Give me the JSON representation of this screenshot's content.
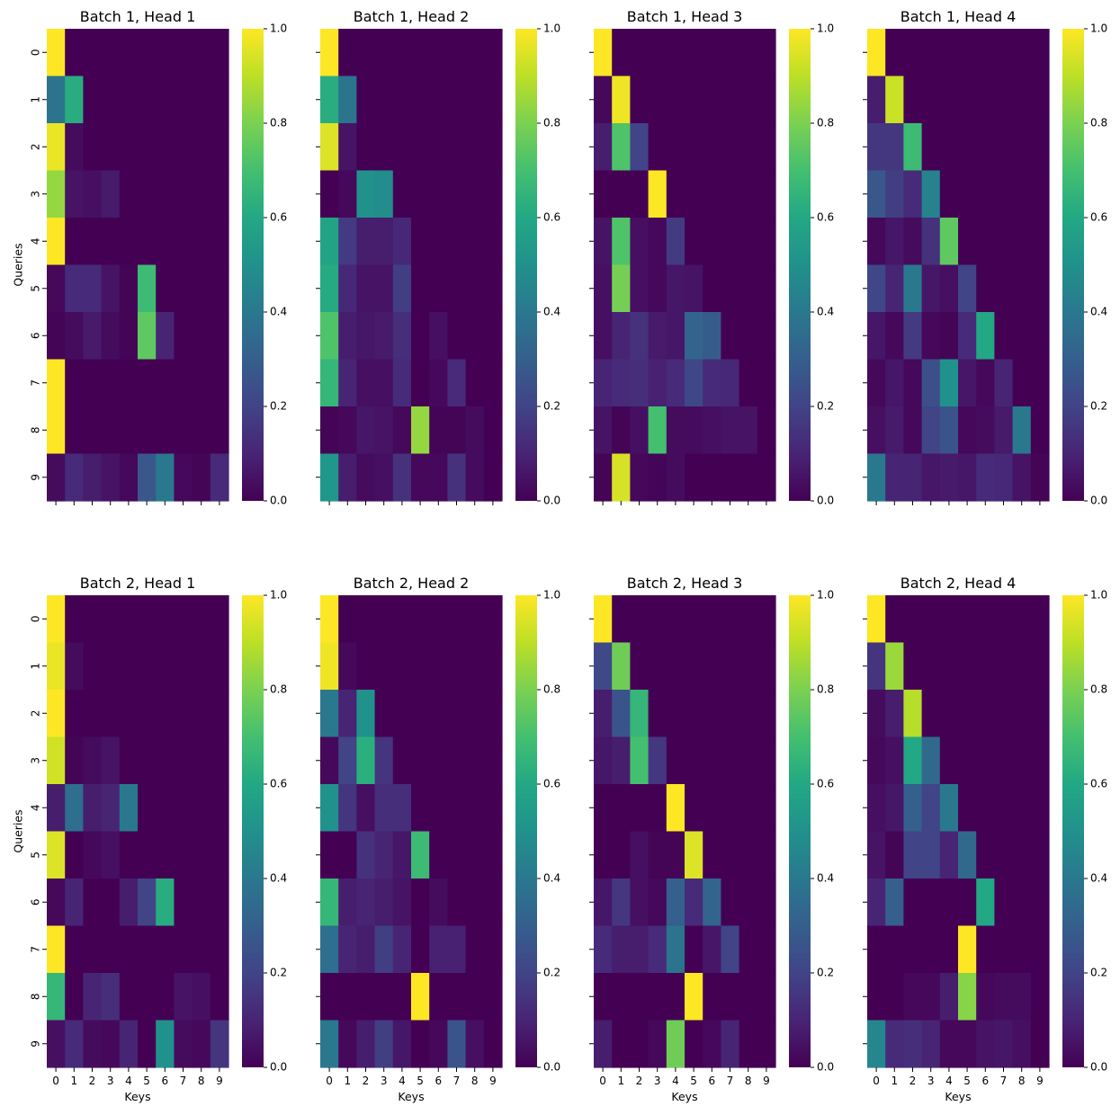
{
  "chart_data": {
    "type": "heatmap",
    "colormap": "viridis",
    "colorbar": {
      "min": 0.0,
      "max": 1.0,
      "ticks": [
        "0.0",
        "0.2",
        "0.4",
        "0.6",
        "0.8",
        "1.0"
      ]
    },
    "x_ticks": [
      "0",
      "1",
      "2",
      "3",
      "4",
      "5",
      "6",
      "7",
      "8",
      "9"
    ],
    "y_ticks": [
      "0",
      "1",
      "2",
      "3",
      "4",
      "5",
      "6",
      "7",
      "8",
      "9"
    ],
    "xlabel": "Keys",
    "ylabel": "Queries",
    "panels": [
      {
        "title": "Batch 1, Head 1",
        "matrix": [
          [
            1.0,
            0,
            0,
            0,
            0,
            0,
            0,
            0,
            0,
            0
          ],
          [
            0.38,
            0.62,
            0,
            0,
            0,
            0,
            0,
            0,
            0,
            0
          ],
          [
            0.97,
            0.03,
            0,
            0,
            0,
            0,
            0,
            0,
            0,
            0
          ],
          [
            0.84,
            0.05,
            0.04,
            0.07,
            0,
            0,
            0,
            0,
            0,
            0
          ],
          [
            1.0,
            0,
            0,
            0,
            0,
            0,
            0,
            0,
            0,
            0
          ],
          [
            0.02,
            0.12,
            0.12,
            0.05,
            0.01,
            0.68,
            0,
            0,
            0,
            0
          ],
          [
            0.01,
            0.03,
            0.07,
            0.03,
            0.01,
            0.75,
            0.1,
            0,
            0,
            0
          ],
          [
            1.0,
            0,
            0,
            0,
            0,
            0,
            0,
            0,
            0,
            0
          ],
          [
            1.0,
            0,
            0,
            0,
            0,
            0,
            0,
            0,
            0,
            0
          ],
          [
            0.03,
            0.12,
            0.08,
            0.05,
            0.02,
            0.27,
            0.4,
            0.02,
            0.01,
            0.12
          ]
        ]
      },
      {
        "title": "Batch 1, Head 2",
        "matrix": [
          [
            1.0,
            0,
            0,
            0,
            0,
            0,
            0,
            0,
            0,
            0
          ],
          [
            0.62,
            0.38,
            0,
            0,
            0,
            0,
            0,
            0,
            0,
            0
          ],
          [
            0.95,
            0.05,
            0,
            0,
            0,
            0,
            0,
            0,
            0,
            0
          ],
          [
            0.0,
            0.02,
            0.5,
            0.48,
            0,
            0,
            0,
            0,
            0,
            0
          ],
          [
            0.58,
            0.17,
            0.08,
            0.08,
            0.11,
            0,
            0,
            0,
            0,
            0
          ],
          [
            0.61,
            0.11,
            0.05,
            0.05,
            0.18,
            0.0,
            0,
            0,
            0,
            0
          ],
          [
            0.72,
            0.08,
            0.06,
            0.07,
            0.13,
            0.0,
            0.04,
            0,
            0,
            0
          ],
          [
            0.66,
            0.1,
            0.04,
            0.04,
            0.12,
            0.0,
            0.02,
            0.12,
            0,
            0
          ],
          [
            0.01,
            0.02,
            0.06,
            0.05,
            0.02,
            0.84,
            0.01,
            0.01,
            0.03,
            0
          ],
          [
            0.52,
            0.08,
            0.03,
            0.04,
            0.14,
            0.02,
            0.02,
            0.14,
            0.03,
            0.0
          ]
        ]
      },
      {
        "title": "Batch 1, Head 3",
        "matrix": [
          [
            1.0,
            0,
            0,
            0,
            0,
            0,
            0,
            0,
            0,
            0
          ],
          [
            0.02,
            0.98,
            0,
            0,
            0,
            0,
            0,
            0,
            0,
            0
          ],
          [
            0.08,
            0.72,
            0.2,
            0,
            0,
            0,
            0,
            0,
            0,
            0
          ],
          [
            0.0,
            0.0,
            0.0,
            1.0,
            0,
            0,
            0,
            0,
            0,
            0
          ],
          [
            0.05,
            0.72,
            0.04,
            0.02,
            0.17,
            0,
            0,
            0,
            0,
            0
          ],
          [
            0.04,
            0.79,
            0.04,
            0.02,
            0.06,
            0.05,
            0,
            0,
            0,
            0
          ],
          [
            0.04,
            0.1,
            0.14,
            0.07,
            0.06,
            0.32,
            0.29,
            0,
            0,
            0
          ],
          [
            0.1,
            0.12,
            0.13,
            0.09,
            0.12,
            0.21,
            0.12,
            0.11,
            0,
            0
          ],
          [
            0.05,
            0.01,
            0.04,
            0.7,
            0.03,
            0.03,
            0.04,
            0.05,
            0.05,
            0
          ],
          [
            0.01,
            0.94,
            0.02,
            0.01,
            0.03,
            0.0,
            0.0,
            0.0,
            0.0,
            0.0
          ]
        ]
      },
      {
        "title": "Batch 1, Head 4",
        "matrix": [
          [
            1.0,
            0,
            0,
            0,
            0,
            0,
            0,
            0,
            0,
            0
          ],
          [
            0.08,
            0.92,
            0,
            0,
            0,
            0,
            0,
            0,
            0,
            0
          ],
          [
            0.16,
            0.16,
            0.68,
            0,
            0,
            0,
            0,
            0,
            0,
            0
          ],
          [
            0.27,
            0.18,
            0.12,
            0.44,
            0,
            0,
            0,
            0,
            0,
            0
          ],
          [
            0.02,
            0.06,
            0.03,
            0.14,
            0.75,
            0,
            0,
            0,
            0,
            0
          ],
          [
            0.21,
            0.1,
            0.4,
            0.06,
            0.04,
            0.2,
            0,
            0,
            0,
            0
          ],
          [
            0.06,
            0.02,
            0.17,
            0.02,
            0.01,
            0.12,
            0.6,
            0,
            0,
            0
          ],
          [
            0.02,
            0.06,
            0.02,
            0.24,
            0.5,
            0.06,
            0.02,
            0.1,
            0,
            0
          ],
          [
            0.04,
            0.07,
            0.02,
            0.2,
            0.26,
            0.02,
            0.03,
            0.07,
            0.4,
            0
          ],
          [
            0.4,
            0.1,
            0.1,
            0.06,
            0.07,
            0.06,
            0.12,
            0.11,
            0.05,
            0.01
          ]
        ]
      },
      {
        "title": "Batch 2, Head 1",
        "matrix": [
          [
            1.0,
            0,
            0,
            0,
            0,
            0,
            0,
            0,
            0,
            0
          ],
          [
            0.97,
            0.03,
            0,
            0,
            0,
            0,
            0,
            0,
            0,
            0
          ],
          [
            1.0,
            0,
            0,
            0,
            0,
            0,
            0,
            0,
            0,
            0
          ],
          [
            0.93,
            0.01,
            0.03,
            0.05,
            0,
            0,
            0,
            0,
            0,
            0
          ],
          [
            0.08,
            0.36,
            0.08,
            0.1,
            0.4,
            0,
            0,
            0,
            0,
            0
          ],
          [
            0.95,
            0.0,
            0.02,
            0.04,
            0.0,
            0.0,
            0,
            0,
            0,
            0
          ],
          [
            0.02,
            0.1,
            0.0,
            0.0,
            0.08,
            0.2,
            0.62,
            0,
            0,
            0
          ],
          [
            1.0,
            0,
            0,
            0,
            0,
            0,
            0,
            0,
            0,
            0
          ],
          [
            0.66,
            0.0,
            0.1,
            0.13,
            0.0,
            0.0,
            0.0,
            0.05,
            0.04,
            0
          ],
          [
            0.04,
            0.12,
            0.03,
            0.02,
            0.1,
            0.0,
            0.5,
            0.03,
            0.02,
            0.15
          ]
        ]
      },
      {
        "title": "Batch 2, Head 2",
        "matrix": [
          [
            1.0,
            0,
            0,
            0,
            0,
            0,
            0,
            0,
            0,
            0
          ],
          [
            0.98,
            0.02,
            0,
            0,
            0,
            0,
            0,
            0,
            0,
            0
          ],
          [
            0.4,
            0.1,
            0.5,
            0,
            0,
            0,
            0,
            0,
            0,
            0
          ],
          [
            0.02,
            0.2,
            0.63,
            0.15,
            0,
            0,
            0,
            0,
            0,
            0
          ],
          [
            0.5,
            0.15,
            0.04,
            0.13,
            0.13,
            0,
            0,
            0,
            0,
            0
          ],
          [
            0.0,
            0.0,
            0.14,
            0.1,
            0.06,
            0.68,
            0,
            0,
            0,
            0
          ],
          [
            0.66,
            0.08,
            0.1,
            0.08,
            0.05,
            0.0,
            0.03,
            0,
            0,
            0
          ],
          [
            0.36,
            0.1,
            0.08,
            0.18,
            0.1,
            0.0,
            0.09,
            0.09,
            0,
            0
          ],
          [
            0.0,
            0.0,
            0.0,
            0.0,
            0.0,
            1.0,
            0,
            0,
            0,
            0
          ],
          [
            0.4,
            0.02,
            0.08,
            0.18,
            0.06,
            0.0,
            0.02,
            0.26,
            0.04,
            0.0
          ]
        ]
      },
      {
        "title": "Batch 2, Head 3",
        "matrix": [
          [
            1.0,
            0,
            0,
            0,
            0,
            0,
            0,
            0,
            0,
            0
          ],
          [
            0.22,
            0.78,
            0,
            0,
            0,
            0,
            0,
            0,
            0,
            0
          ],
          [
            0.08,
            0.26,
            0.66,
            0,
            0,
            0,
            0,
            0,
            0,
            0
          ],
          [
            0.06,
            0.08,
            0.7,
            0.16,
            0,
            0,
            0,
            0,
            0,
            0
          ],
          [
            0.0,
            0.0,
            0.0,
            0.0,
            1.0,
            0,
            0,
            0,
            0,
            0
          ],
          [
            0.0,
            0.0,
            0.04,
            0.01,
            0.01,
            0.95,
            0,
            0,
            0,
            0
          ],
          [
            0.06,
            0.16,
            0.04,
            0.02,
            0.3,
            0.12,
            0.32,
            0,
            0,
            0
          ],
          [
            0.12,
            0.08,
            0.08,
            0.12,
            0.38,
            0.0,
            0.06,
            0.2,
            0,
            0
          ],
          [
            0.0,
            0.0,
            0.0,
            0.0,
            0.0,
            1.0,
            0,
            0,
            0,
            0
          ],
          [
            0.08,
            0.0,
            0.0,
            0.02,
            0.78,
            0.0,
            0.02,
            0.1,
            0.0,
            0.0
          ]
        ]
      },
      {
        "title": "Batch 2, Head 4",
        "matrix": [
          [
            1.0,
            0,
            0,
            0,
            0,
            0,
            0,
            0,
            0,
            0
          ],
          [
            0.15,
            0.85,
            0,
            0,
            0,
            0,
            0,
            0,
            0,
            0
          ],
          [
            0.03,
            0.08,
            0.89,
            0,
            0,
            0,
            0,
            0,
            0,
            0
          ],
          [
            0.02,
            0.04,
            0.6,
            0.34,
            0,
            0,
            0,
            0,
            0,
            0
          ],
          [
            0.04,
            0.06,
            0.3,
            0.2,
            0.4,
            0,
            0,
            0,
            0,
            0
          ],
          [
            0.05,
            0.01,
            0.2,
            0.2,
            0.1,
            0.34,
            0,
            0,
            0,
            0
          ],
          [
            0.1,
            0.3,
            0.0,
            0.0,
            0.0,
            0.0,
            0.6,
            0,
            0,
            0
          ],
          [
            0.0,
            0.0,
            0.0,
            0.0,
            0.0,
            1.0,
            0,
            0,
            0,
            0
          ],
          [
            0.0,
            0.0,
            0.02,
            0.02,
            0.08,
            0.82,
            0.02,
            0.03,
            0.03,
            0
          ],
          [
            0.46,
            0.12,
            0.13,
            0.1,
            0.02,
            0.02,
            0.05,
            0.06,
            0.04,
            0.0
          ]
        ]
      }
    ]
  }
}
